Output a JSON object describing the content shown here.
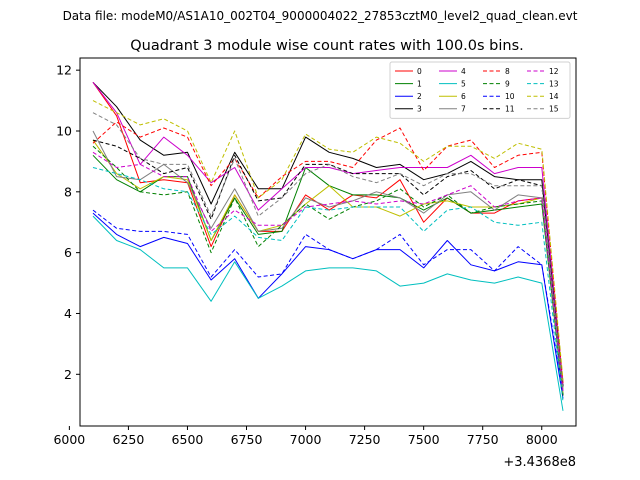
{
  "chart_data": {
    "type": "line",
    "suptitle": "Data file: modeM0/AS1A10_002T04_9000004022_27853cztM0_level2_quad_clean.evt",
    "title": "Quadrant 3 module wise count rates with 100.0s bins.",
    "xlabel": "",
    "ylabel": "",
    "x_offset_label": "+3.4368e8",
    "xlim": [
      6045,
      8145
    ],
    "ylim": [
      0.3,
      12.4
    ],
    "xticks": [
      6000,
      6250,
      6500,
      6750,
      7000,
      7250,
      7500,
      7750,
      8000
    ],
    "yticks": [
      2,
      4,
      6,
      8,
      10,
      12
    ],
    "x": [
      6100,
      6200,
      6300,
      6400,
      6500,
      6600,
      6700,
      6800,
      6900,
      7000,
      7100,
      7200,
      7300,
      7400,
      7500,
      7600,
      7700,
      7800,
      7900,
      8000,
      8090
    ],
    "legend_location": "upper right",
    "series": [
      {
        "name": "0",
        "color": "#ff0000",
        "dash": "solid",
        "values": [
          11.6,
          10.5,
          8.3,
          8.4,
          8.3,
          6.2,
          7.9,
          6.7,
          6.7,
          7.9,
          7.4,
          7.9,
          7.8,
          8.4,
          7.0,
          7.8,
          7.3,
          7.3,
          7.7,
          7.8,
          1.3
        ]
      },
      {
        "name": "1",
        "color": "#008000",
        "dash": "solid",
        "values": [
          9.2,
          8.4,
          8.0,
          8.5,
          8.5,
          6.4,
          7.8,
          6.6,
          6.7,
          8.8,
          8.2,
          7.9,
          7.9,
          7.8,
          7.4,
          7.8,
          7.3,
          7.4,
          7.5,
          7.6,
          1.3
        ]
      },
      {
        "name": "2",
        "color": "#0000ff",
        "dash": "solid",
        "values": [
          7.3,
          6.6,
          6.2,
          6.5,
          6.3,
          5.1,
          5.8,
          4.5,
          5.3,
          6.2,
          6.1,
          5.8,
          6.1,
          6.1,
          5.5,
          6.4,
          5.6,
          5.4,
          5.7,
          5.6,
          1.2
        ]
      },
      {
        "name": "3",
        "color": "#000000",
        "dash": "solid",
        "values": [
          11.6,
          10.8,
          9.7,
          9.2,
          9.3,
          7.6,
          9.3,
          8.1,
          8.1,
          9.8,
          9.3,
          9.1,
          8.8,
          8.9,
          8.4,
          8.6,
          9.0,
          8.5,
          8.4,
          8.4,
          1.6
        ]
      },
      {
        "name": "4",
        "color": "#cc00cc",
        "dash": "solid",
        "values": [
          11.6,
          10.6,
          8.9,
          9.8,
          9.2,
          8.3,
          8.8,
          7.4,
          8.1,
          8.8,
          8.8,
          8.6,
          8.7,
          8.8,
          8.8,
          8.8,
          9.2,
          8.6,
          8.8,
          8.8,
          1.7
        ]
      },
      {
        "name": "5",
        "color": "#00bfbf",
        "dash": "solid",
        "values": [
          7.2,
          6.4,
          6.1,
          5.5,
          5.5,
          4.4,
          5.7,
          4.5,
          4.9,
          5.4,
          5.5,
          5.5,
          5.4,
          4.9,
          5.0,
          5.3,
          5.1,
          5.0,
          5.2,
          5.0,
          0.8
        ]
      },
      {
        "name": "6",
        "color": "#bfbf00",
        "dash": "solid",
        "values": [
          9.7,
          8.6,
          8.1,
          8.5,
          8.4,
          6.4,
          7.9,
          6.7,
          6.9,
          7.6,
          8.2,
          7.5,
          7.5,
          7.2,
          7.6,
          7.7,
          7.5,
          7.5,
          7.6,
          7.8,
          1.4
        ]
      },
      {
        "name": "7",
        "color": "#808080",
        "dash": "solid",
        "values": [
          10.0,
          8.5,
          8.4,
          8.9,
          8.3,
          6.8,
          8.1,
          6.7,
          6.8,
          7.8,
          7.5,
          7.7,
          8.0,
          7.8,
          7.3,
          7.9,
          8.0,
          7.4,
          7.9,
          7.8,
          1.5
        ]
      },
      {
        "name": "8",
        "color": "#ff0000",
        "dash": "dashed",
        "values": [
          9.6,
          10.3,
          9.8,
          10.1,
          9.8,
          8.2,
          9.1,
          7.8,
          8.5,
          9.0,
          9.0,
          8.8,
          9.7,
          10.1,
          8.7,
          9.5,
          9.7,
          8.8,
          9.2,
          9.3,
          1.7
        ]
      },
      {
        "name": "9",
        "color": "#008000",
        "dash": "dashed",
        "values": [
          9.5,
          8.8,
          8.0,
          7.9,
          8.0,
          6.0,
          7.8,
          6.2,
          6.9,
          7.6,
          7.1,
          7.5,
          7.7,
          8.1,
          7.5,
          7.9,
          7.3,
          7.5,
          7.6,
          7.7,
          1.3
        ]
      },
      {
        "name": "10",
        "color": "#0000ff",
        "dash": "dashed",
        "values": [
          7.4,
          6.8,
          6.7,
          6.7,
          6.6,
          5.2,
          6.1,
          5.2,
          5.3,
          6.6,
          6.1,
          5.8,
          6.1,
          6.6,
          5.6,
          6.1,
          6.1,
          5.4,
          6.2,
          5.6,
          1.4
        ]
      },
      {
        "name": "11",
        "color": "#000000",
        "dash": "dashed",
        "values": [
          9.7,
          9.5,
          9.1,
          8.6,
          8.8,
          7.1,
          9.2,
          7.7,
          7.8,
          8.9,
          8.9,
          8.6,
          8.6,
          8.6,
          7.9,
          8.5,
          8.7,
          8.1,
          8.4,
          8.2,
          1.6
        ]
      },
      {
        "name": "12",
        "color": "#cc00cc",
        "dash": "dashed",
        "values": [
          9.3,
          8.8,
          8.9,
          8.5,
          8.5,
          6.7,
          7.4,
          6.9,
          6.9,
          7.5,
          7.6,
          7.7,
          7.6,
          7.7,
          7.6,
          7.9,
          8.2,
          7.5,
          7.7,
          7.8,
          1.4
        ]
      },
      {
        "name": "13",
        "color": "#00bfbf",
        "dash": "dashed",
        "values": [
          8.8,
          8.6,
          8.4,
          8.1,
          8.0,
          6.6,
          7.2,
          6.5,
          6.4,
          7.5,
          7.4,
          7.5,
          7.5,
          7.5,
          6.7,
          7.4,
          7.5,
          7.0,
          6.9,
          7.0,
          1.1
        ]
      },
      {
        "name": "14",
        "color": "#bfbf00",
        "dash": "dashed",
        "values": [
          11.0,
          10.6,
          10.2,
          10.4,
          10.0,
          8.3,
          10.0,
          7.8,
          8.4,
          9.9,
          9.4,
          9.3,
          9.8,
          9.6,
          9.0,
          9.5,
          9.5,
          9.1,
          9.6,
          9.4,
          1.8
        ]
      },
      {
        "name": "15",
        "color": "#808080",
        "dash": "dashed",
        "values": [
          10.6,
          10.2,
          9.1,
          8.9,
          8.9,
          7.2,
          9.1,
          7.2,
          7.8,
          8.6,
          8.9,
          8.5,
          8.3,
          8.6,
          8.2,
          8.6,
          8.6,
          8.2,
          8.2,
          8.2,
          1.5
        ]
      }
    ]
  }
}
